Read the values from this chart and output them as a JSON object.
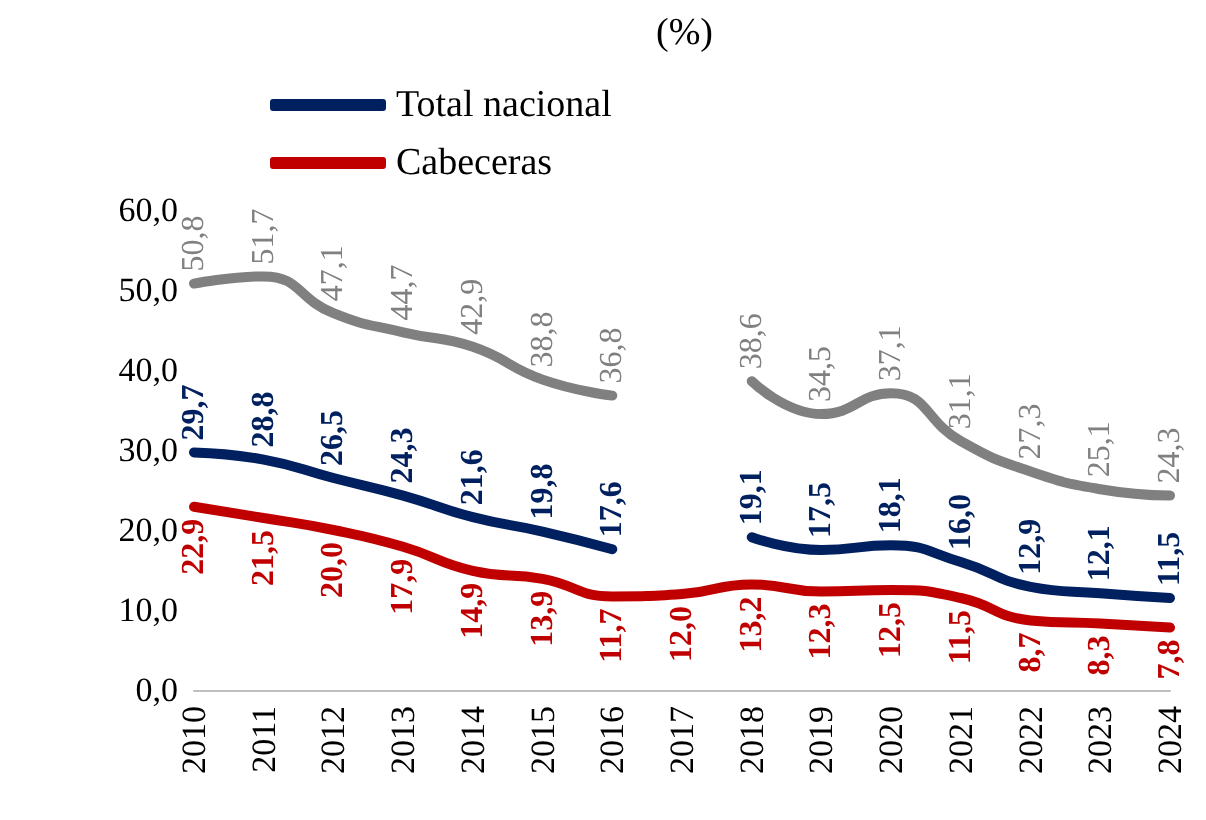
{
  "chart_data": {
    "type": "line",
    "title": "(%)",
    "categories": [
      "2010",
      "2011",
      "2012",
      "2013",
      "2014",
      "2015",
      "2016",
      "2017",
      "2018",
      "2019",
      "2020",
      "2021",
      "2022",
      "2023",
      "2024"
    ],
    "series": [
      {
        "color": "#808080",
        "values": [
          50.8,
          51.7,
          47.1,
          44.7,
          42.9,
          38.8,
          36.8,
          null,
          38.6,
          34.5,
          37.1,
          31.1,
          27.3,
          25.1,
          24.3
        ],
        "value_labels": [
          "50,8",
          "51,7",
          "47,1",
          "44,7",
          "42,9",
          "38,8",
          "36,8",
          null,
          "38,6",
          "34,5",
          "37,1",
          "31,1",
          "27,3",
          "25,1",
          "24,3"
        ]
      },
      {
        "name": "Total nacional",
        "color": "#002060",
        "values": [
          29.7,
          28.8,
          26.5,
          24.3,
          21.6,
          19.8,
          17.6,
          null,
          19.1,
          17.5,
          18.1,
          16.0,
          12.9,
          12.1,
          11.5
        ],
        "value_labels": [
          "29,7",
          "28,8",
          "26,5",
          "24,3",
          "21,6",
          "19,8",
          "17,6",
          null,
          "19,1",
          "17,5",
          "18,1",
          "16,0",
          "12,9",
          "12,1",
          "11,5"
        ]
      },
      {
        "name": "Cabeceras",
        "color": "#c00000",
        "values": [
          22.9,
          21.5,
          20.0,
          17.9,
          14.9,
          13.9,
          11.7,
          12.0,
          13.2,
          12.3,
          12.5,
          11.5,
          8.7,
          8.3,
          7.8
        ],
        "value_labels": [
          "22,9",
          "21,5",
          "20,0",
          "17,9",
          "14,9",
          "13,9",
          "11,7",
          "12,0",
          "13,2",
          "12,3",
          "12,5",
          "11,5",
          "8,7",
          "8,3",
          "7,8"
        ]
      }
    ],
    "ylim": [
      0,
      60
    ],
    "yticks": [
      {
        "value": 0,
        "label": "0,0"
      },
      {
        "value": 10,
        "label": "10,0"
      },
      {
        "value": 20,
        "label": "20,0"
      },
      {
        "value": 30,
        "label": "30,0"
      },
      {
        "value": 40,
        "label": "40,0"
      },
      {
        "value": 50,
        "label": "50,0"
      },
      {
        "value": 60,
        "label": "60,0"
      }
    ],
    "grid": false,
    "legend": "top",
    "marker": "none",
    "line_style": "solid"
  }
}
